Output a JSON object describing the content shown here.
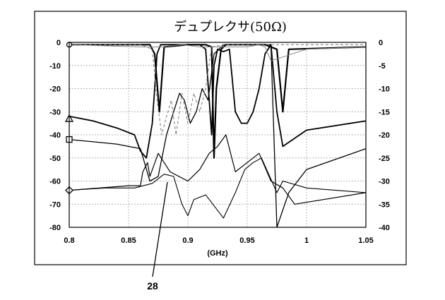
{
  "chart_data": {
    "type": "line",
    "title": "デュプレクサ(50Ω)",
    "xlabel": "(GHz)",
    "xlim": [
      0.8,
      1.05
    ],
    "ylim_left": [
      -80,
      0
    ],
    "ylim_right": [
      -40,
      0
    ],
    "x_ticks": [
      "0.8",
      "0.85",
      "0.9",
      "0.95",
      "1",
      "1.05"
    ],
    "y_ticks_left": [
      "0",
      "-10",
      "-20",
      "-30",
      "-40",
      "-50",
      "-60",
      "-70",
      "-80"
    ],
    "y_ticks_right": [
      "0",
      "-5",
      "-10",
      "-15",
      "-20",
      "-25",
      "-30",
      "-35",
      "-40"
    ],
    "grid": true,
    "annotation": {
      "text": "28"
    },
    "series": [
      {
        "axis": "left",
        "color": "#000000",
        "width": 2.2,
        "x": [
          0.8,
          0.86,
          0.868,
          0.872,
          0.876,
          0.88,
          0.9,
          0.915,
          0.92,
          0.922,
          0.924,
          0.928,
          0.932,
          0.935,
          0.95,
          0.965,
          0.975,
          0.98,
          0.985,
          1.05
        ],
        "y": [
          -1,
          -1,
          -1,
          -5,
          -30,
          -2,
          -1,
          -1,
          -2,
          -50,
          -20,
          -3,
          -1,
          -1,
          -1,
          -1,
          -3,
          -30,
          -3,
          -2
        ]
      },
      {
        "axis": "left",
        "color": "#000000",
        "width": 1.8,
        "x": [
          0.8,
          0.82,
          0.84,
          0.855,
          0.86,
          0.865,
          0.87,
          0.874,
          0.877,
          0.88,
          0.885,
          0.89,
          0.895,
          0.9,
          0.905,
          0.91,
          0.915,
          0.92,
          0.922,
          0.925,
          0.93,
          0.935,
          0.94,
          0.945,
          0.95,
          0.955,
          0.96,
          0.965,
          0.97,
          0.975,
          0.98,
          1.0,
          1.05
        ],
        "y": [
          -32,
          -34,
          -37,
          -40,
          -47,
          -50,
          -35,
          -5,
          -1,
          -1,
          -1,
          -1,
          -1,
          -1,
          -1,
          -1,
          -3,
          -40,
          -10,
          -3,
          -4,
          -3,
          -30,
          -35,
          -35,
          -30,
          -20,
          -5,
          -1,
          -30,
          -45,
          -38,
          -34
        ]
      },
      {
        "axis": "left",
        "color": "#000000",
        "width": 1.3,
        "x": [
          0.8,
          0.84,
          0.86,
          0.868,
          0.875,
          0.882,
          0.888,
          0.893,
          0.897,
          0.902,
          0.907,
          0.912,
          0.917,
          0.922,
          0.93,
          0.945,
          0.96,
          0.97,
          0.975,
          0.985,
          1.0,
          1.05
        ],
        "y": [
          -42,
          -44,
          -46,
          -60,
          -58,
          -40,
          -30,
          -22,
          -25,
          -35,
          -30,
          -20,
          -25,
          -5,
          -1,
          -1,
          -1,
          -1,
          -80,
          -65,
          -55,
          -46
        ]
      },
      {
        "axis": "left",
        "color": "#000000",
        "width": 1.2,
        "x": [
          0.8,
          0.85,
          0.86,
          0.862,
          0.866,
          0.868,
          0.875,
          0.885,
          0.9,
          0.91,
          0.918,
          0.925,
          0.932,
          0.94,
          0.95,
          0.96,
          0.97,
          0.98,
          0.99,
          1.05
        ],
        "y": [
          -64,
          -62,
          -62,
          -56,
          -52,
          -58,
          -48,
          -56,
          -60,
          -55,
          -48,
          -45,
          -40,
          -56,
          -52,
          -48,
          -60,
          -63,
          -70,
          -65
        ]
      },
      {
        "axis": "left",
        "color": "#000000",
        "width": 1.1,
        "x": [
          0.8,
          0.83,
          0.855,
          0.87,
          0.88,
          0.888,
          0.895,
          0.9,
          0.905,
          0.915,
          0.93,
          0.94,
          0.948,
          0.955,
          0.962,
          0.975,
          0.98,
          1.0,
          1.05
        ],
        "y": [
          -64,
          -63,
          -63,
          -61,
          -57,
          -58,
          -70,
          -75,
          -68,
          -66,
          -76,
          -65,
          -55,
          -52,
          -50,
          -65,
          -60,
          -63,
          -65
        ]
      },
      {
        "axis": "left",
        "color": "#777777",
        "width": 1.0,
        "dash": "4 3",
        "x": [
          0.8,
          0.86,
          0.87,
          0.874,
          0.878,
          0.882,
          0.886,
          0.89,
          0.895,
          0.9,
          0.905,
          0.91,
          0.915,
          0.92,
          0.93,
          1.05
        ],
        "y": [
          -1,
          -1,
          -3,
          -25,
          -40,
          -32,
          -25,
          -40,
          -22,
          -35,
          -22,
          -30,
          -20,
          -2,
          -1,
          -1
        ]
      },
      {
        "axis": "left",
        "color": "#888888",
        "width": 1.0,
        "x": [
          0.8,
          0.86,
          0.87,
          0.88,
          0.895,
          0.91,
          0.93,
          0.95,
          0.96,
          0.965,
          0.97,
          1.0,
          1.05
        ],
        "y": [
          -1,
          -2,
          -2,
          -2,
          -1,
          -2,
          -2,
          -2,
          -1,
          -2,
          -8,
          -3,
          -2
        ]
      }
    ],
    "markers": [
      {
        "shape": "triangle",
        "x": 0.8,
        "y": -33
      },
      {
        "shape": "square",
        "x": 0.8,
        "y": -42
      },
      {
        "shape": "diamond",
        "x": 0.8,
        "y": -64
      },
      {
        "shape": "circle",
        "x": 0.8,
        "y": -1
      }
    ]
  }
}
